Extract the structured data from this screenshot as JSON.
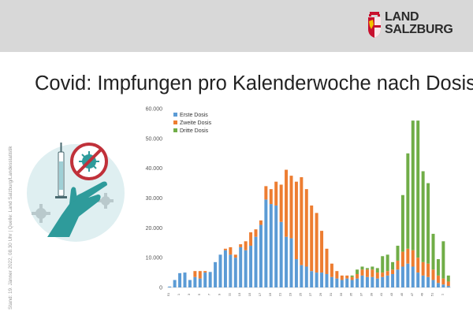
{
  "header": {
    "logo_line1": "LAND",
    "logo_line2": "SALZBURG"
  },
  "title": "Covid: Impfungen pro Kalenderwoche nach Dosis",
  "side_note": "Stand: 19. Jänner 2022, 08.30 Uhr | Quelle: Land Salzburg/Landesstatistik",
  "colors": {
    "header_band": "#d8d8d8",
    "logo_red": "#c8102e",
    "erste": "#5b9bd5",
    "zweite": "#ed7d31",
    "dritte": "#70ad47",
    "illustration_teal": "#2e9b9b",
    "illustration_bg": "#dfeff1",
    "prohibition_red": "#c0313a"
  },
  "icons": [
    "salzburg-shield-icon",
    "vaccine-syringe-hand-icon",
    "crossed-virus-icon"
  ],
  "chart_data": {
    "type": "bar",
    "stacked": true,
    "title": "",
    "xlabel": "",
    "ylabel": "",
    "ylim": [
      0,
      60000
    ],
    "yticks": [
      "0",
      "10.000",
      "20.000",
      "30.000",
      "40.000",
      "50.000",
      "60.000"
    ],
    "grid": false,
    "legend": "top-left",
    "categories": [
      "51",
      "52",
      "1",
      "2",
      "3",
      "4",
      "5",
      "6",
      "7",
      "8",
      "9",
      "10",
      "11",
      "12",
      "13",
      "14",
      "15",
      "16",
      "17",
      "18",
      "19",
      "20",
      "21",
      "22",
      "23",
      "24",
      "25",
      "26",
      "27",
      "28",
      "29",
      "30",
      "31",
      "32",
      "33",
      "34",
      "35",
      "36",
      "37",
      "38",
      "39",
      "40",
      "41",
      "42",
      "43",
      "44",
      "45",
      "46",
      "47",
      "48",
      "49",
      "50",
      "51",
      "52",
      "1",
      "2"
    ],
    "x_tick_labels": [
      "51",
      "1",
      "3",
      "5",
      "7",
      "9",
      "11",
      "13",
      "15",
      "17",
      "19",
      "21",
      "23",
      "25",
      "27",
      "29",
      "31",
      "33",
      "35",
      "37",
      "39",
      "41",
      "43",
      "45",
      "47",
      "49",
      "51",
      "1"
    ],
    "series": [
      {
        "name": "Erste Dosis",
        "values": [
          300,
          2500,
          4800,
          5000,
          2500,
          3500,
          3000,
          5000,
          5200,
          8500,
          11000,
          12500,
          11000,
          10000,
          13500,
          12500,
          14000,
          17000,
          21000,
          29500,
          28000,
          27500,
          22000,
          17000,
          16500,
          9500,
          7500,
          7000,
          5500,
          5000,
          5000,
          4500,
          3500,
          3000,
          2500,
          3000,
          2500,
          3000,
          4000,
          3500,
          3500,
          3000,
          3500,
          4000,
          4500,
          6000,
          7000,
          8000,
          7000,
          5000,
          4000,
          3500,
          2500,
          1500,
          1000,
          500
        ]
      },
      {
        "name": "Zweite Dosis",
        "values": [
          0,
          0,
          0,
          0,
          0,
          2000,
          2500,
          500,
          0,
          0,
          0,
          500,
          2500,
          1000,
          1000,
          3000,
          4500,
          2500,
          1500,
          4500,
          5000,
          8000,
          12500,
          22500,
          21000,
          26000,
          29500,
          26000,
          22000,
          20000,
          14000,
          8500,
          4500,
          2500,
          1500,
          1000,
          1000,
          1500,
          2000,
          2500,
          2500,
          2000,
          1500,
          1500,
          1500,
          3000,
          5000,
          5000,
          5500,
          5000,
          4500,
          4500,
          3500,
          2500,
          2000,
          1500
        ]
      },
      {
        "name": "Dritte Dosis",
        "values": [
          0,
          0,
          0,
          0,
          0,
          0,
          0,
          0,
          0,
          0,
          0,
          0,
          0,
          0,
          0,
          0,
          0,
          0,
          0,
          0,
          0,
          0,
          0,
          0,
          0,
          0,
          0,
          0,
          0,
          0,
          0,
          0,
          0,
          0,
          0,
          0,
          500,
          1500,
          1000,
          500,
          1000,
          1500,
          5500,
          5500,
          2500,
          5000,
          19000,
          32000,
          43500,
          46000,
          30500,
          27000,
          12000,
          5500,
          12500,
          2000
        ]
      }
    ]
  }
}
